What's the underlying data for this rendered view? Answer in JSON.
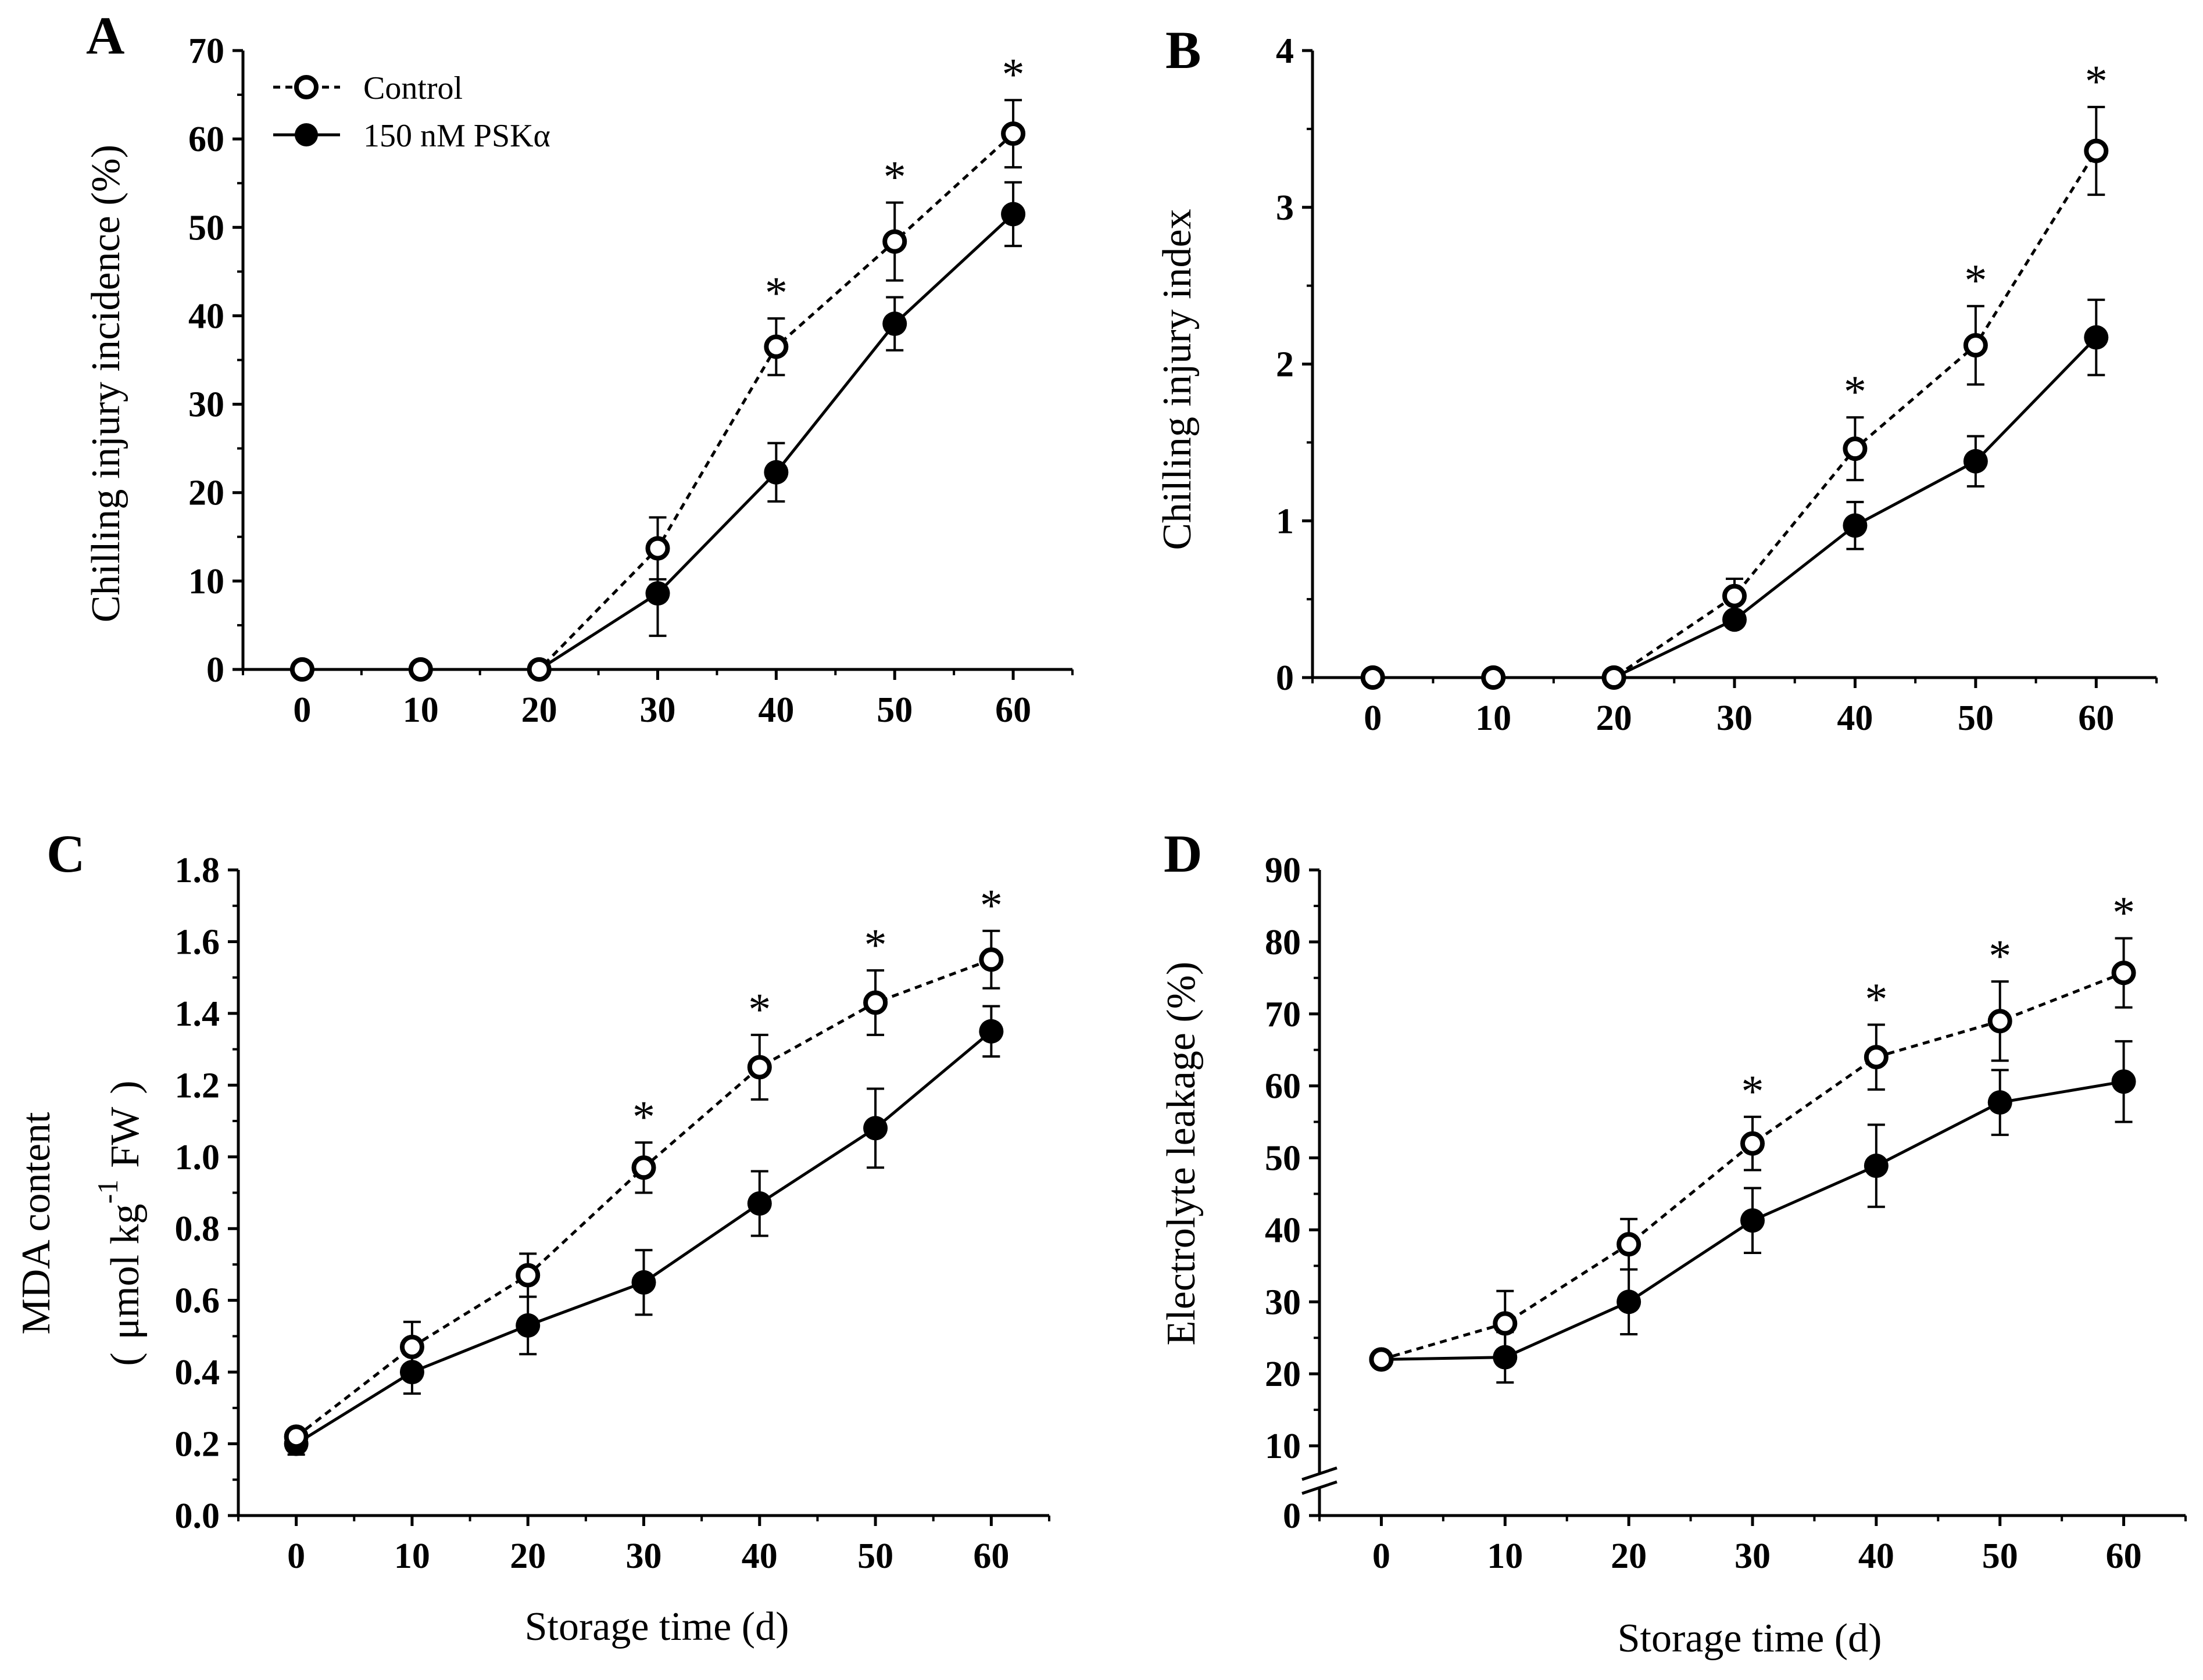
{
  "chart_data": [
    {
      "type": "line",
      "panel": "A",
      "ylabel": "Chilling injury incidence (%)",
      "xlabel": "",
      "ylim": [
        0,
        70
      ],
      "yticks": [
        "0",
        "10",
        "20",
        "30",
        "40",
        "50",
        "60",
        "70"
      ],
      "xlim": [
        -5,
        65
      ],
      "xticks": [
        "0",
        "10",
        "20",
        "30",
        "40",
        "50",
        "60"
      ],
      "x": [
        0,
        10,
        20,
        30,
        40,
        50,
        60
      ],
      "legend": {
        "position": "top-left",
        "entries": [
          "Control",
          "150 nM PSKα"
        ]
      },
      "series": [
        {
          "name": "Control",
          "style": "dashed-open",
          "values": [
            0,
            0,
            0,
            13.7,
            36.5,
            48.4,
            60.6
          ],
          "errors": [
            0,
            0,
            0,
            3.5,
            3.2,
            4.4,
            3.8
          ]
        },
        {
          "name": "150 nM PSKα",
          "style": "solid-filled",
          "values": [
            0,
            0,
            0,
            8.6,
            22.3,
            39.1,
            51.5
          ],
          "errors": [
            0,
            0,
            0,
            4.8,
            3.3,
            3.0,
            3.6
          ]
        }
      ],
      "significance": [
        {
          "x": 40,
          "label": "*"
        },
        {
          "x": 50,
          "label": "*"
        },
        {
          "x": 60,
          "label": "*"
        }
      ]
    },
    {
      "type": "line",
      "panel": "B",
      "ylabel": "Chilling injury index",
      "xlabel": "",
      "ylim": [
        0,
        4
      ],
      "yticks": [
        "0",
        "1",
        "2",
        "3",
        "4"
      ],
      "xlim": [
        -5,
        65
      ],
      "xticks": [
        "0",
        "10",
        "20",
        "30",
        "40",
        "50",
        "60"
      ],
      "x": [
        0,
        10,
        20,
        30,
        40,
        50,
        60
      ],
      "series": [
        {
          "name": "Control",
          "style": "dashed-open",
          "values": [
            0,
            0,
            0,
            0.52,
            1.46,
            2.12,
            3.36
          ],
          "errors": [
            0,
            0,
            0,
            0.11,
            0.2,
            0.25,
            0.28
          ]
        },
        {
          "name": "150 nM PSKα",
          "style": "solid-filled",
          "values": [
            0,
            0,
            0,
            0.37,
            0.97,
            1.38,
            2.17
          ],
          "errors": [
            0,
            0,
            0,
            0,
            0.15,
            0.16,
            0.24
          ]
        }
      ],
      "significance": [
        {
          "x": 40,
          "label": "*"
        },
        {
          "x": 50,
          "label": "*"
        },
        {
          "x": 60,
          "label": "*"
        }
      ]
    },
    {
      "type": "line",
      "panel": "C",
      "ylabel_line1": "MDA content",
      "ylabel_open": "(",
      "ylabel_unit": "μmol kg",
      "ylabel_sup": "-1",
      "ylabel_fw": "FW",
      "ylabel_close": ")",
      "xlabel": "Storage time (d)",
      "ylim": [
        0,
        1.8
      ],
      "yticks": [
        "0.0",
        "0.2",
        "0.4",
        "0.6",
        "0.8",
        "1.0",
        "1.2",
        "1.4",
        "1.6",
        "1.8"
      ],
      "xlim": [
        -5,
        65
      ],
      "xticks": [
        "0",
        "10",
        "20",
        "30",
        "40",
        "50",
        "60"
      ],
      "x": [
        0,
        10,
        20,
        30,
        40,
        50,
        60
      ],
      "series": [
        {
          "name": "Control",
          "style": "dashed-open",
          "values": [
            0.22,
            0.47,
            0.67,
            0.97,
            1.25,
            1.43,
            1.55
          ],
          "errors": [
            0.02,
            0.07,
            0.06,
            0.07,
            0.09,
            0.09,
            0.08
          ]
        },
        {
          "name": "150 nM PSKα",
          "style": "solid-filled",
          "values": [
            0.2,
            0.4,
            0.53,
            0.65,
            0.87,
            1.08,
            1.35
          ],
          "errors": [
            0.03,
            0.06,
            0.08,
            0.09,
            0.09,
            0.11,
            0.07
          ]
        }
      ],
      "significance": [
        {
          "x": 30,
          "label": "*"
        },
        {
          "x": 40,
          "label": "*"
        },
        {
          "x": 50,
          "label": "*"
        },
        {
          "x": 60,
          "label": "*"
        }
      ]
    },
    {
      "type": "line",
      "panel": "D",
      "ylabel": "Electrolyte leakage (%)",
      "xlabel": "Storage time (d)",
      "ylim": [
        0,
        90
      ],
      "axis_break": "between 0 and 10",
      "yticks": [
        "0",
        "10",
        "20",
        "30",
        "40",
        "50",
        "60",
        "70",
        "80",
        "90"
      ],
      "xlim": [
        -5,
        65
      ],
      "xticks": [
        "0",
        "10",
        "20",
        "30",
        "40",
        "50",
        "60"
      ],
      "x": [
        0,
        10,
        20,
        30,
        40,
        50,
        60
      ],
      "series": [
        {
          "name": "Control",
          "style": "dashed-open",
          "values": [
            22,
            27,
            38,
            52,
            64,
            69,
            75.7
          ],
          "errors": [
            1,
            4.5,
            3.5,
            3.7,
            4.5,
            5.5,
            4.8
          ]
        },
        {
          "name": "150 nM PSKα",
          "style": "solid-filled",
          "values": [
            22,
            22.3,
            30,
            41.3,
            48.9,
            57.7,
            60.6
          ],
          "errors": [
            1,
            3.5,
            4.5,
            4.5,
            5.7,
            4.5,
            5.6
          ]
        }
      ],
      "significance": [
        {
          "x": 30,
          "label": "*"
        },
        {
          "x": 40,
          "label": "*"
        },
        {
          "x": 50,
          "label": "*"
        },
        {
          "x": 60,
          "label": "*"
        }
      ]
    }
  ]
}
